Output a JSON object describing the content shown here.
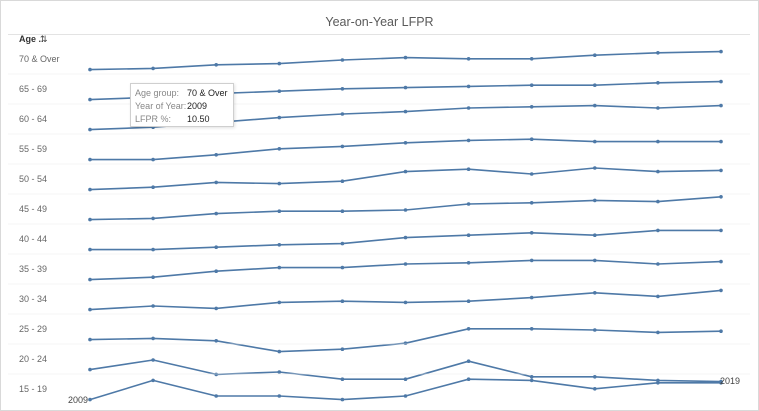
{
  "chart_title": "Year-on-Year LFPR",
  "row_header": {
    "label": "Age .."
  },
  "tooltip": {
    "rows": [
      {
        "key": "Age group:",
        "value": "70 & Over"
      },
      {
        "key": "Year of Year:",
        "value": "2009"
      },
      {
        "key": "LFPR %:",
        "value": "10.50"
      }
    ]
  },
  "colors": {
    "line": "#4e79a7",
    "label": "#666666",
    "grid": "#ececec"
  },
  "chart_data": {
    "type": "line",
    "title": "Year-on-Year LFPR",
    "x": [
      2009,
      2010,
      2011,
      2012,
      2013,
      2014,
      2015,
      2016,
      2017,
      2018,
      2019
    ],
    "x_end_labels": [
      "2009",
      "2019"
    ],
    "series": [
      {
        "name": "70 & Over",
        "values": [
          10.5,
          10.6,
          10.9,
          11.0,
          11.3,
          11.5,
          11.4,
          11.4,
          11.7,
          11.9,
          12.0
        ]
      },
      {
        "name": "65 - 69",
        "values": [
          null,
          null,
          null,
          null,
          null,
          null,
          null,
          null,
          null,
          null,
          null
        ],
        "anchors": [
          20.0,
          20.2,
          20.5,
          20.7,
          20.9,
          21.0,
          21.1,
          21.2,
          21.2,
          21.4,
          21.5
        ]
      },
      {
        "name": "60 - 64",
        "values": [
          30.0,
          30.2,
          30.6,
          31.0,
          31.3,
          31.5,
          31.8,
          31.9,
          32.0,
          31.8,
          32.0
        ]
      },
      {
        "name": "55 - 59",
        "values": [
          40.0,
          40.0,
          40.4,
          40.9,
          41.1,
          41.4,
          41.6,
          41.7,
          41.5,
          41.5,
          41.5
        ]
      },
      {
        "name": "50 - 54",
        "values": [
          50.0,
          50.2,
          50.6,
          50.5,
          50.7,
          51.5,
          51.7,
          51.3,
          51.8,
          51.5,
          51.6
        ]
      },
      {
        "name": "45 - 49",
        "values": [
          60.0,
          60.1,
          60.5,
          60.7,
          60.7,
          60.8,
          61.3,
          61.4,
          61.6,
          61.5,
          61.9
        ]
      },
      {
        "name": "40 - 44",
        "values": [
          70.0,
          70.0,
          70.2,
          70.4,
          70.5,
          71.0,
          71.2,
          71.4,
          71.2,
          71.6,
          71.6
        ]
      },
      {
        "name": "35 - 39",
        "values": [
          80.0,
          80.2,
          80.7,
          81.0,
          81.0,
          81.3,
          81.4,
          81.6,
          81.6,
          81.3,
          81.5
        ]
      },
      {
        "name": "30 - 34",
        "values": [
          90.0,
          90.3,
          90.1,
          90.6,
          90.7,
          90.6,
          90.7,
          91.0,
          91.4,
          91.1,
          91.6
        ]
      },
      {
        "name": "25 - 29",
        "values": [
          100.0,
          100.1,
          99.9,
          99.0,
          99.2,
          99.7,
          100.9,
          100.9,
          100.8,
          100.6,
          100.7
        ]
      },
      {
        "name": "20 - 24",
        "values": [
          110.0,
          110.8,
          109.6,
          109.8,
          109.2,
          109.2,
          110.7,
          109.4,
          109.4,
          109.1,
          109.0
        ]
      },
      {
        "name": "15 - 19",
        "values": [
          120.0,
          121.6,
          120.3,
          120.3,
          120.0,
          120.3,
          121.7,
          121.6,
          120.9,
          121.4,
          121.4
        ]
      }
    ],
    "rows": [
      "70 & Over",
      "65 - 69",
      "60 - 64",
      "55 - 59",
      "50 - 54",
      "45 - 49",
      "40 - 44",
      "35 - 39",
      "30 - 34",
      "25 - 29",
      "20 - 24",
      "15 - 19"
    ],
    "grid": "row-dividers",
    "legend": "none"
  }
}
